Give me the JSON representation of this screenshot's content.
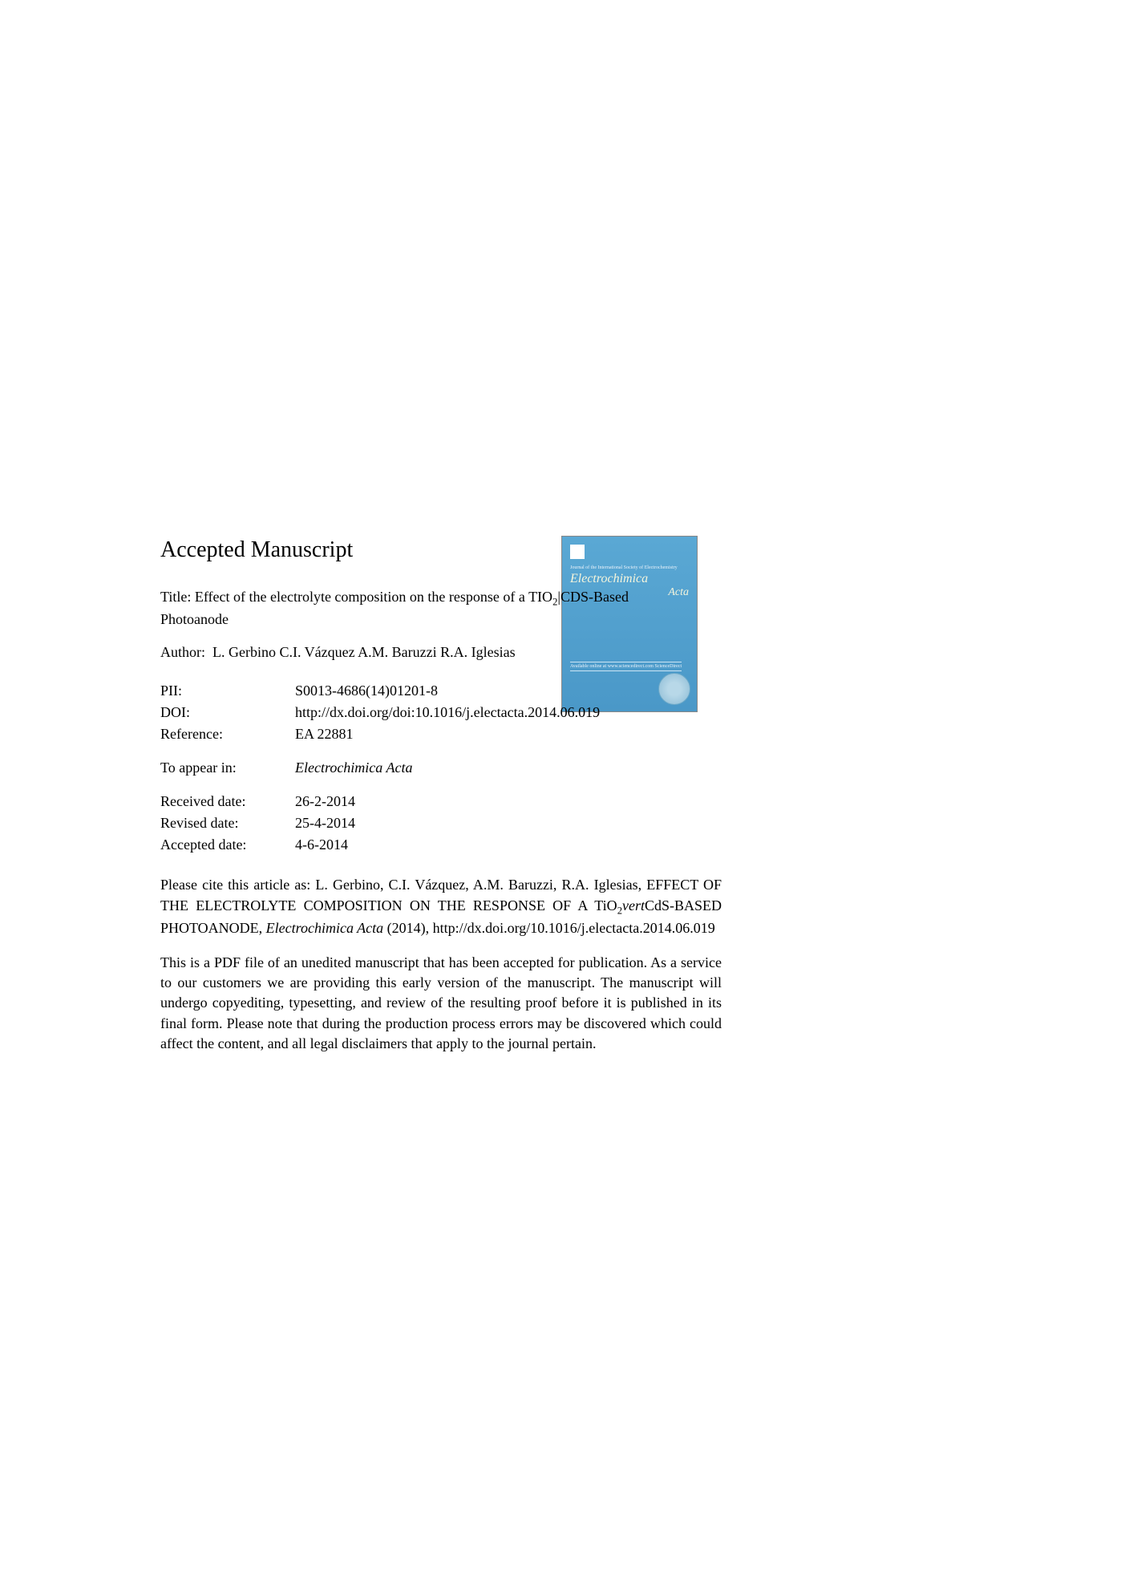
{
  "header": {
    "title": "Accepted Manuscript"
  },
  "manuscript": {
    "title_label": "Title:",
    "title_text": "Effect of the electrolyte composition on the response of a TIO",
    "title_sub": "2",
    "title_rest": "|CDS-Based Photoanode",
    "author_label": "Author:",
    "author_text": "L. Gerbino C.I. Vázquez A.M. Baruzzi R.A. Iglesias"
  },
  "meta": {
    "pii_label": "PII:",
    "pii_value": "S0013-4686(14)01201-8",
    "doi_label": "DOI:",
    "doi_value": "http://dx.doi.org/doi:10.1016/j.electacta.2014.06.019",
    "ref_label": "Reference:",
    "ref_value": "EA 22881"
  },
  "appear": {
    "label": "To appear in:",
    "value": "Electrochimica Acta"
  },
  "dates": {
    "received_label": "Received date:",
    "received_value": "26-2-2014",
    "revised_label": "Revised date:",
    "revised_value": "25-4-2014",
    "accepted_label": "Accepted date:",
    "accepted_value": "4-6-2014"
  },
  "cite": {
    "prefix": "Please cite this article as: L. Gerbino, C.I. Vázquez, A.M. Baruzzi, R.A. Iglesias, EFFECT OF THE ELECTROLYTE COMPOSITION ON THE RESPONSE OF A TiO",
    "sub": "2",
    "mid": "vert",
    "rest": "CdS-BASED PHOTOANODE, ",
    "journal": "Electrochimica Acta",
    "year": " (2014), http://dx.doi.org/10.1016/j.electacta.2014.06.019"
  },
  "disclaimer": {
    "text": "This is a PDF file of an unedited manuscript that has been accepted for publication. As a service to our customers we are providing this early version of the manuscript. The manuscript will undergo copyediting, typesetting, and review of the resulting proof before it is published in its final form. Please note that during the production process errors may be discovered which could affect the content, and all legal disclaimers that apply to the journal pertain."
  },
  "cover": {
    "journal_line1": "Electrochimica",
    "journal_line2": "Acta",
    "subtitle": "Journal of the International Society of Electrochemistry",
    "bottom_text": "Available online at www.sciencedirect.com\nScienceDirect"
  },
  "colors": {
    "background": "#ffffff",
    "text": "#000000",
    "cover_bg_top": "#5aa8d4",
    "cover_bg_bottom": "#4a98c8",
    "cover_text": "#f5f5dc"
  }
}
